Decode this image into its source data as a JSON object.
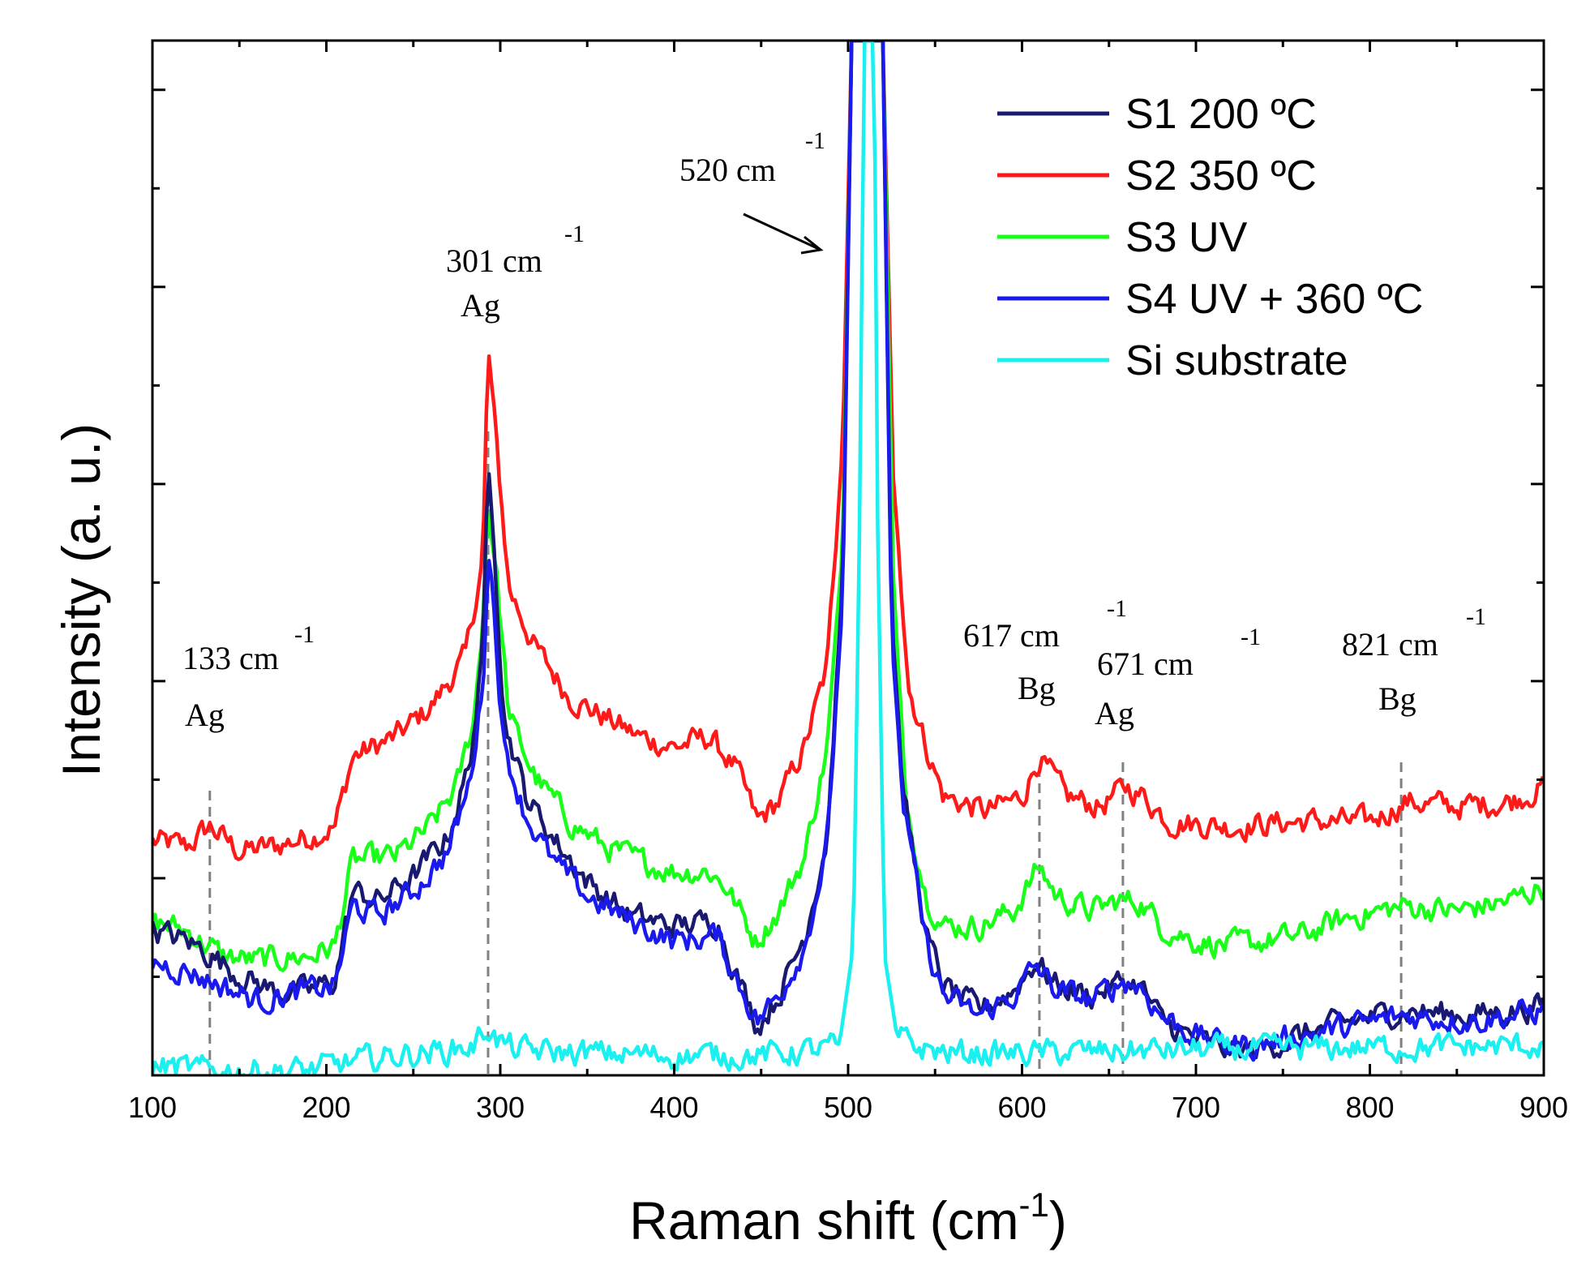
{
  "chart_data": {
    "type": "line",
    "xlabel": "Raman shift (cm",
    "xlabel_sup": "-1",
    "xlabel_end": ")",
    "ylabel": "Intensity (a. u.)",
    "xlim": [
      100,
      900
    ],
    "ylim": [
      0,
      10.4
    ],
    "x_ticks": [
      100,
      200,
      300,
      400,
      500,
      600,
      700,
      800,
      900
    ],
    "y_tick_labels_shown": false,
    "grid": false,
    "legend": "top-right",
    "series": [
      {
        "name": "S1 200 ºC",
        "color": "#191970",
        "points": [
          [
            100,
            1.45
          ],
          [
            120,
            1.35
          ],
          [
            135,
            1.2
          ],
          [
            150,
            1.0
          ],
          [
            170,
            0.85
          ],
          [
            190,
            0.85
          ],
          [
            205,
            0.95
          ],
          [
            215,
            1.85
          ],
          [
            230,
            1.75
          ],
          [
            250,
            2.0
          ],
          [
            270,
            2.4
          ],
          [
            282,
            3.1
          ],
          [
            290,
            4.2
          ],
          [
            293,
            6.2
          ],
          [
            296,
            5.6
          ],
          [
            302,
            3.6
          ],
          [
            315,
            2.8
          ],
          [
            330,
            2.4
          ],
          [
            350,
            1.95
          ],
          [
            375,
            1.6
          ],
          [
            400,
            1.5
          ],
          [
            425,
            1.55
          ],
          [
            435,
            1.05
          ],
          [
            448,
            0.5
          ],
          [
            460,
            0.8
          ],
          [
            475,
            1.4
          ],
          [
            488,
            2.4
          ],
          [
            497,
            5.0
          ],
          [
            502,
            10.4
          ],
          [
            520,
            10.4
          ],
          [
            525,
            4.6
          ],
          [
            532,
            2.8
          ],
          [
            545,
            1.4
          ],
          [
            555,
            0.9
          ],
          [
            575,
            0.65
          ],
          [
            595,
            0.85
          ],
          [
            608,
            1.15
          ],
          [
            620,
            0.9
          ],
          [
            640,
            0.8
          ],
          [
            658,
            0.95
          ],
          [
            668,
            0.9
          ],
          [
            680,
            0.55
          ],
          [
            700,
            0.35
          ],
          [
            720,
            0.25
          ],
          [
            735,
            0.25
          ],
          [
            760,
            0.4
          ],
          [
            790,
            0.55
          ],
          [
            820,
            0.65
          ],
          [
            860,
            0.6
          ],
          [
            900,
            0.7
          ]
        ]
      },
      {
        "name": "S2 350 ºC",
        "color": "#ff1a1a",
        "points": [
          [
            100,
            2.35
          ],
          [
            120,
            2.3
          ],
          [
            133,
            2.5
          ],
          [
            150,
            2.25
          ],
          [
            170,
            2.3
          ],
          [
            190,
            2.4
          ],
          [
            205,
            2.5
          ],
          [
            215,
            3.2
          ],
          [
            240,
            3.4
          ],
          [
            260,
            3.7
          ],
          [
            280,
            4.2
          ],
          [
            290,
            5.2
          ],
          [
            293,
            7.3
          ],
          [
            297,
            6.5
          ],
          [
            305,
            4.9
          ],
          [
            320,
            4.3
          ],
          [
            340,
            3.8
          ],
          [
            360,
            3.6
          ],
          [
            380,
            3.4
          ],
          [
            400,
            3.3
          ],
          [
            420,
            3.4
          ],
          [
            435,
            3.1
          ],
          [
            448,
            2.55
          ],
          [
            460,
            2.75
          ],
          [
            475,
            3.3
          ],
          [
            488,
            4.1
          ],
          [
            497,
            6.4
          ],
          [
            502,
            10.4
          ],
          [
            520,
            10.4
          ],
          [
            526,
            6.0
          ],
          [
            535,
            3.9
          ],
          [
            545,
            3.3
          ],
          [
            555,
            2.8
          ],
          [
            580,
            2.65
          ],
          [
            600,
            2.8
          ],
          [
            610,
            3.2
          ],
          [
            625,
            2.8
          ],
          [
            645,
            2.7
          ],
          [
            660,
            2.9
          ],
          [
            670,
            2.8
          ],
          [
            685,
            2.55
          ],
          [
            720,
            2.5
          ],
          [
            760,
            2.55
          ],
          [
            800,
            2.55
          ],
          [
            821,
            2.75
          ],
          [
            850,
            2.7
          ],
          [
            880,
            2.75
          ],
          [
            900,
            2.9
          ]
        ]
      },
      {
        "name": "S3 UV",
        "color": "#1aff1a",
        "points": [
          [
            100,
            1.55
          ],
          [
            120,
            1.45
          ],
          [
            140,
            1.2
          ],
          [
            160,
            1.15
          ],
          [
            190,
            1.2
          ],
          [
            205,
            1.3
          ],
          [
            215,
            2.15
          ],
          [
            240,
            2.2
          ],
          [
            260,
            2.5
          ],
          [
            275,
            2.9
          ],
          [
            285,
            3.6
          ],
          [
            290,
            4.6
          ],
          [
            293,
            5.8
          ],
          [
            298,
            5.0
          ],
          [
            305,
            3.6
          ],
          [
            320,
            3.0
          ],
          [
            340,
            2.55
          ],
          [
            360,
            2.3
          ],
          [
            380,
            2.15
          ],
          [
            400,
            2.05
          ],
          [
            420,
            2.05
          ],
          [
            430,
            1.9
          ],
          [
            447,
            1.35
          ],
          [
            460,
            1.65
          ],
          [
            475,
            2.2
          ],
          [
            488,
            3.3
          ],
          [
            497,
            5.3
          ],
          [
            502,
            10.4
          ],
          [
            520,
            10.4
          ],
          [
            526,
            5.0
          ],
          [
            533,
            2.8
          ],
          [
            545,
            1.8
          ],
          [
            555,
            1.5
          ],
          [
            575,
            1.5
          ],
          [
            595,
            1.65
          ],
          [
            610,
            2.1
          ],
          [
            620,
            1.8
          ],
          [
            640,
            1.65
          ],
          [
            655,
            1.75
          ],
          [
            668,
            1.75
          ],
          [
            680,
            1.5
          ],
          [
            700,
            1.35
          ],
          [
            720,
            1.3
          ],
          [
            760,
            1.4
          ],
          [
            790,
            1.6
          ],
          [
            821,
            1.7
          ],
          [
            850,
            1.65
          ],
          [
            880,
            1.75
          ],
          [
            900,
            1.9
          ]
        ]
      },
      {
        "name": "S4 UV + 360 ºC",
        "color": "#1a1aee",
        "points": [
          [
            100,
            1.15
          ],
          [
            120,
            1.05
          ],
          [
            140,
            0.9
          ],
          [
            160,
            0.75
          ],
          [
            190,
            0.85
          ],
          [
            205,
            0.9
          ],
          [
            215,
            1.7
          ],
          [
            230,
            1.6
          ],
          [
            250,
            1.85
          ],
          [
            270,
            2.25
          ],
          [
            282,
            2.9
          ],
          [
            290,
            3.9
          ],
          [
            293,
            5.3
          ],
          [
            296,
            4.8
          ],
          [
            302,
            3.3
          ],
          [
            315,
            2.6
          ],
          [
            330,
            2.15
          ],
          [
            350,
            1.8
          ],
          [
            375,
            1.55
          ],
          [
            400,
            1.35
          ],
          [
            425,
            1.4
          ],
          [
            435,
            1.0
          ],
          [
            448,
            0.55
          ],
          [
            460,
            0.8
          ],
          [
            475,
            1.3
          ],
          [
            488,
            2.3
          ],
          [
            497,
            4.8
          ],
          [
            502,
            10.4
          ],
          [
            520,
            10.4
          ],
          [
            525,
            4.4
          ],
          [
            532,
            2.7
          ],
          [
            545,
            1.3
          ],
          [
            555,
            0.8
          ],
          [
            575,
            0.6
          ],
          [
            595,
            0.8
          ],
          [
            608,
            1.1
          ],
          [
            620,
            0.85
          ],
          [
            640,
            0.75
          ],
          [
            658,
            0.95
          ],
          [
            668,
            0.9
          ],
          [
            680,
            0.6
          ],
          [
            700,
            0.4
          ],
          [
            720,
            0.3
          ],
          [
            735,
            0.3
          ],
          [
            760,
            0.4
          ],
          [
            790,
            0.5
          ],
          [
            820,
            0.6
          ],
          [
            860,
            0.55
          ],
          [
            900,
            0.65
          ]
        ]
      },
      {
        "name": "Si substrate",
        "color": "#1af0f0",
        "points": [
          [
            100,
            0.1
          ],
          [
            130,
            0.05
          ],
          [
            160,
            0.05
          ],
          [
            190,
            0.05
          ],
          [
            210,
            0.12
          ],
          [
            240,
            0.2
          ],
          [
            270,
            0.25
          ],
          [
            285,
            0.3
          ],
          [
            293,
            0.5
          ],
          [
            298,
            0.35
          ],
          [
            310,
            0.25
          ],
          [
            350,
            0.22
          ],
          [
            400,
            0.2
          ],
          [
            450,
            0.2
          ],
          [
            480,
            0.25
          ],
          [
            495,
            0.3
          ],
          [
            503,
            1.3
          ],
          [
            507,
            6.0
          ],
          [
            509,
            10.4
          ],
          [
            515,
            10.4
          ],
          [
            517,
            5.5
          ],
          [
            521,
            1.2
          ],
          [
            528,
            0.4
          ],
          [
            540,
            0.28
          ],
          [
            560,
            0.22
          ],
          [
            600,
            0.22
          ],
          [
            650,
            0.24
          ],
          [
            700,
            0.26
          ],
          [
            750,
            0.26
          ],
          [
            800,
            0.28
          ],
          [
            850,
            0.28
          ],
          [
            900,
            0.3
          ]
        ]
      }
    ],
    "annotations": [
      {
        "x": 133,
        "wavenumber": "133 cm",
        "sup": "-1",
        "mode": "Ag"
      },
      {
        "x": 293,
        "wavenumber": "301 cm",
        "sup": "-1",
        "mode": "Ag"
      },
      {
        "x": 503,
        "wavenumber": "520 cm",
        "sup": "-1",
        "mode": ""
      },
      {
        "x": 610,
        "wavenumber": "617 cm",
        "sup": "-1",
        "mode": "Bg"
      },
      {
        "x": 658,
        "wavenumber": "671 cm",
        "sup": "-1",
        "mode": "Ag"
      },
      {
        "x": 818,
        "wavenumber": "821 cm",
        "sup": "-1",
        "mode": "Bg"
      }
    ]
  }
}
